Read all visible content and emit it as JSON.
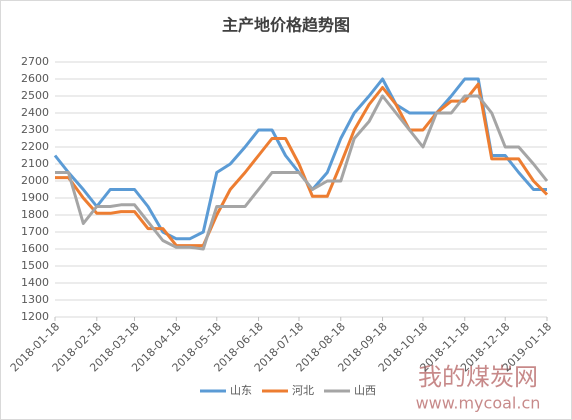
{
  "chart_data": {
    "type": "line",
    "title": "主产地价格趋势图",
    "x": [
      "2018-01-18",
      "2018-01-28",
      "2018-02-08",
      "2018-02-18",
      "2018-02-28",
      "2018-03-08",
      "2018-03-18",
      "2018-03-28",
      "2018-04-08",
      "2018-04-18",
      "2018-04-28",
      "2018-05-08",
      "2018-05-18",
      "2018-05-28",
      "2018-06-08",
      "2018-06-18",
      "2018-06-28",
      "2018-07-08",
      "2018-07-18",
      "2018-07-28",
      "2018-08-08",
      "2018-08-18",
      "2018-08-28",
      "2018-09-08",
      "2018-09-18",
      "2018-09-28",
      "2018-10-08",
      "2018-10-18",
      "2018-10-28",
      "2018-11-08",
      "2018-11-18",
      "2018-11-28",
      "2018-12-08",
      "2018-12-18",
      "2018-12-28",
      "2019-01-08",
      "2019-01-18"
    ],
    "series": [
      {
        "name": "山东",
        "color": "#5b9bd5",
        "values": [
          2150,
          2050,
          1950,
          1850,
          1950,
          1950,
          1950,
          1850,
          1700,
          1660,
          1660,
          1700,
          2050,
          2100,
          2200,
          2300,
          2300,
          2150,
          2050,
          1950,
          2050,
          2250,
          2400,
          2500,
          2600,
          2450,
          2400,
          2400,
          2400,
          2500,
          2600,
          2600,
          2150,
          2150,
          2050,
          1950,
          1950
        ]
      },
      {
        "name": "河北",
        "color": "#ed7d31",
        "values": [
          2020,
          2020,
          1900,
          1810,
          1810,
          1820,
          1820,
          1720,
          1720,
          1620,
          1620,
          1620,
          1800,
          1950,
          2050,
          2150,
          2250,
          2250,
          2100,
          1910,
          1910,
          2100,
          2300,
          2450,
          2550,
          2450,
          2300,
          2300,
          2400,
          2470,
          2470,
          2570,
          2130,
          2130,
          2130,
          2000,
          1920
        ]
      },
      {
        "name": "山西",
        "color": "#a5a5a5",
        "values": [
          2050,
          2050,
          1750,
          1850,
          1850,
          1860,
          1860,
          1760,
          1650,
          1610,
          1610,
          1600,
          1850,
          1850,
          1850,
          1950,
          2050,
          2050,
          2050,
          1950,
          2000,
          2000,
          2250,
          2350,
          2500,
          2400,
          2300,
          2200,
          2400,
          2400,
          2500,
          2500,
          2400,
          2200,
          2200,
          2100,
          2000
        ]
      }
    ],
    "xlim": [
      "2018-01-18",
      "2019-01-18"
    ],
    "xticks": [
      "2018-01-18",
      "2018-02-18",
      "2018-03-18",
      "2018-04-18",
      "2018-05-18",
      "2018-06-18",
      "2018-07-18",
      "2018-08-18",
      "2018-09-18",
      "2018-10-18",
      "2018-11-18",
      "2018-12-18",
      "2019-01-18"
    ],
    "ylim": [
      1200,
      2700
    ],
    "yticks": [
      1200,
      1300,
      1400,
      1500,
      1600,
      1700,
      1800,
      1900,
      2000,
      2100,
      2200,
      2300,
      2400,
      2500,
      2600,
      2700
    ],
    "grid": true,
    "legend": "bottom",
    "watermark": [
      "我的煤炭网",
      "www.mycoal.cn"
    ]
  }
}
